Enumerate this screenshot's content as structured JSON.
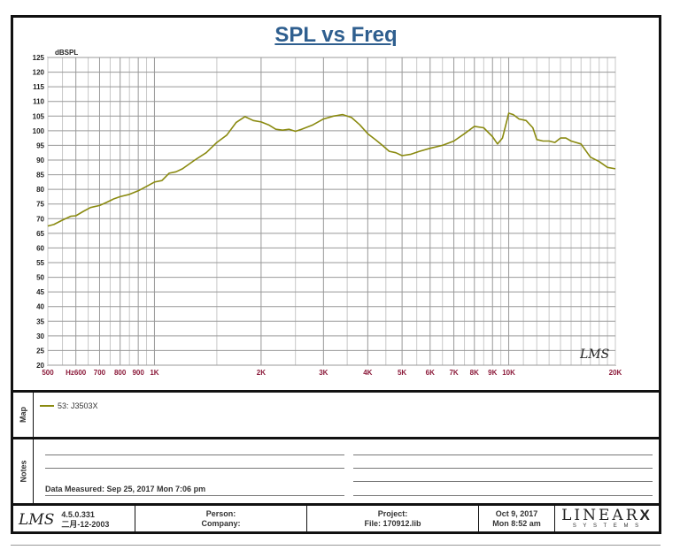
{
  "chart_data": {
    "type": "line",
    "title": "SPL vs Freq",
    "ylabel": "dBSPL",
    "xlabel": "",
    "xscale": "log",
    "xlim": [
      500,
      20000
    ],
    "ylim": [
      20,
      125
    ],
    "grid": true,
    "watermark": "LMS",
    "y_ticks": [
      "125",
      "120",
      "115",
      "110",
      "105",
      "100",
      "95",
      "90",
      "85",
      "80",
      "75",
      "70",
      "65",
      "60",
      "55",
      "50",
      "45",
      "40",
      "35",
      "30",
      "25",
      "20"
    ],
    "x_ticks": [
      {
        "value": 500,
        "label": "500"
      },
      {
        "value": 600,
        "label": "Hz600"
      },
      {
        "value": 700,
        "label": "700"
      },
      {
        "value": 800,
        "label": "800"
      },
      {
        "value": 900,
        "label": "900"
      },
      {
        "value": 1000,
        "label": "1K"
      },
      {
        "value": 2000,
        "label": "2K"
      },
      {
        "value": 3000,
        "label": "3K"
      },
      {
        "value": 4000,
        "label": "4K"
      },
      {
        "value": 5000,
        "label": "5K"
      },
      {
        "value": 6000,
        "label": "6K"
      },
      {
        "value": 7000,
        "label": "7K"
      },
      {
        "value": 8000,
        "label": "8K"
      },
      {
        "value": 9000,
        "label": "9K"
      },
      {
        "value": 10000,
        "label": "10K"
      },
      {
        "value": 20000,
        "label": "20K"
      }
    ],
    "series": [
      {
        "name": "53: J3503X",
        "color": "#8a8a10",
        "x": [
          500,
          520,
          550,
          580,
          600,
          630,
          660,
          700,
          730,
          770,
          800,
          850,
          900,
          950,
          1000,
          1050,
          1100,
          1150,
          1200,
          1300,
          1400,
          1500,
          1600,
          1700,
          1800,
          1900,
          2000,
          2100,
          2200,
          2300,
          2400,
          2500,
          2600,
          2800,
          3000,
          3200,
          3400,
          3600,
          3800,
          4000,
          4200,
          4400,
          4600,
          4800,
          5000,
          5300,
          5600,
          6000,
          6500,
          7000,
          7500,
          8000,
          8500,
          9000,
          9300,
          9600,
          10000,
          10300,
          10700,
          11200,
          11700,
          12000,
          12500,
          13000,
          13500,
          14000,
          14500,
          15000,
          16000,
          17000,
          18000,
          19000,
          20000
        ],
        "y": [
          67.5,
          68,
          69.5,
          70.8,
          71,
          72.5,
          73.8,
          74.5,
          75.5,
          76.8,
          77.5,
          78.3,
          79.5,
          81,
          82.5,
          83,
          85.5,
          86,
          87,
          90,
          92.5,
          96,
          98.5,
          102.8,
          104.8,
          103.5,
          103,
          102,
          100.5,
          100.2,
          100.5,
          99.8,
          100.5,
          102,
          104,
          105,
          105.5,
          104.5,
          102,
          99,
          97,
          95,
          93,
          92.5,
          91.5,
          92,
          93,
          94,
          95,
          96.5,
          99,
          101.5,
          101,
          98,
          95.5,
          97.5,
          106,
          105.5,
          104,
          103.5,
          101,
          97,
          96.5,
          96.5,
          96,
          97.5,
          97.5,
          96.5,
          95.5,
          91,
          89.5,
          87.5,
          87
        ]
      }
    ]
  },
  "map": {
    "label": "Map",
    "legend_entry": "53: J3503X"
  },
  "notes": {
    "label": "Notes",
    "measured": "Data Measured: Sep 25, 2017  Mon  7:06 pm"
  },
  "footer": {
    "logo": "LMS",
    "version": "4.5.0.331",
    "version_date": "二月-12-2003",
    "person_label": "Person:",
    "company_label": "Company:",
    "project_label": "Project:",
    "file_label": "File: 170912.lib",
    "date": "Oct  9, 2017",
    "time": "Mon  8:52 am",
    "brand": "LINEAR",
    "brand_x": "X",
    "brand_sub": "S Y S T E M S"
  }
}
